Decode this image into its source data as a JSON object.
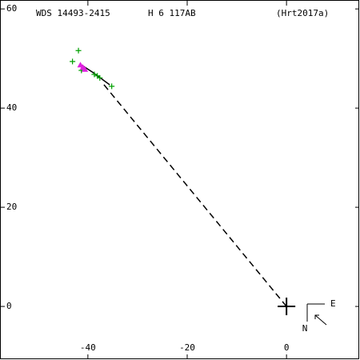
{
  "chart_data": {
    "type": "scatter",
    "header": [
      "WDS 14493-2415",
      "H 6 117AB",
      "(Hrt2017a)"
    ],
    "compass": {
      "east": "E",
      "north": "N"
    },
    "xlim": [
      -57.7,
      14.8
    ],
    "ylim": [
      -10.8,
      61.8
    ],
    "xticks": [
      -40,
      -20,
      0
    ],
    "yticks": [
      0,
      20,
      40,
      60
    ],
    "series": [
      {
        "marker": "dashed",
        "color": "#000000",
        "x": [
          0,
          -37
        ],
        "y": [
          0,
          45
        ]
      },
      {
        "marker": "line",
        "color": "#000000",
        "x": [
          -41.6,
          -39,
          -35.6
        ],
        "y": [
          48.9,
          47.2,
          44.7
        ]
      },
      {
        "marker": "plus",
        "color": "#00a000",
        "x": [
          -41.9,
          -43.1,
          -41.3,
          -38.1,
          -35.2,
          -38.7,
          -37.6
        ],
        "y": [
          51.6,
          49.4,
          47.6,
          46.5,
          44.4,
          46.8,
          46.1
        ]
      },
      {
        "marker": "triangle",
        "color": "#e020e0",
        "x": [
          -41.5,
          -41.0,
          -40.6
        ],
        "y": [
          48.7,
          48.2,
          47.8
        ]
      },
      {
        "marker": "big-plus",
        "color": "#000000",
        "x": [
          0
        ],
        "y": [
          0
        ]
      }
    ]
  }
}
